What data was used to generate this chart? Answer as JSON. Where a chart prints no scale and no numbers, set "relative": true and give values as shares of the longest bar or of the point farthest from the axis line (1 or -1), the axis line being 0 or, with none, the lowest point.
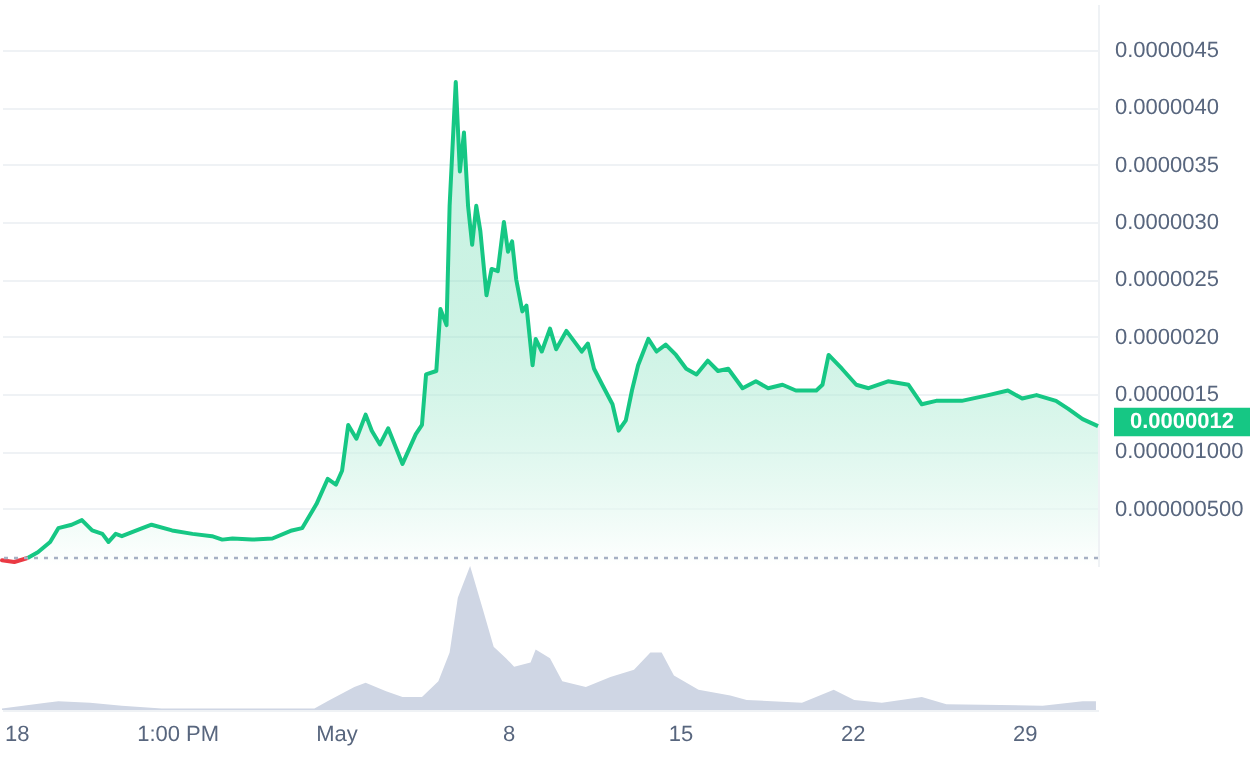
{
  "chart_data": [
    {
      "type": "line",
      "tick_labels": "y",
      "grid": "y",
      "xlim": [
        "--04-17T10:00",
        "--06-01T00:00"
      ],
      "ylim": [
        0,
        4.9e-06
      ],
      "yticks": [
        {
          "value": 5e-07,
          "label": "0.000000500"
        },
        {
          "value": 1e-06,
          "label": "0.000001000"
        },
        {
          "value": 1.5e-06,
          "label": "0.0000015"
        },
        {
          "value": 2e-06,
          "label": "0.0000020"
        },
        {
          "value": 2.5e-06,
          "label": "0.0000025"
        },
        {
          "value": 3e-06,
          "label": "0.0000030"
        },
        {
          "value": 3.5e-06,
          "label": "0.0000035"
        },
        {
          "value": 4e-06,
          "label": "0.0000040"
        },
        {
          "value": 4.5e-06,
          "label": "0.0000045"
        }
      ],
      "ref_lines": [
        {
          "axis": "y",
          "value": 7e-08,
          "line_style": "dotted",
          "color": "#a6b0c3"
        }
      ],
      "annotations": [
        {
          "text": "0.0000012",
          "x": "--06-01T00:00",
          "y": 1.22e-06
        }
      ],
      "series": [
        {
          "type": "line",
          "color": "#ea3943",
          "x": [
            "--04-17T10:00",
            "--04-17T22:00",
            "--04-18T11:00"
          ],
          "values": [
            5e-08,
            3.5e-08,
            7e-08
          ]
        },
        {
          "type": "area",
          "color": "#16c784",
          "x": [
            "--04-18T11:00",
            "--04-18T21:00",
            "--04-19T09:00",
            "--04-19T17:00",
            "--04-20T06:00",
            "--04-20T16:00",
            "--04-21T02:00",
            "--04-21T12:00",
            "--04-21T18:00",
            "--04-22T01:00",
            "--04-22T07:00",
            "--04-23T03:00",
            "--04-23T12:00",
            "--04-24T08:00",
            "--04-25T04:00",
            "--04-25T23:00",
            "--04-26T09:00",
            "--04-26T19:00",
            "--04-27T14:00",
            "--04-28T10:00",
            "--04-29T05:00",
            "--04-29T15:00",
            "--04-30T05:00",
            "--04-30T16:00",
            "--05-01T00:00",
            "--05-01T06:00",
            "--05-01T12:00",
            "--05-01T20:00",
            "--05-02T05:00",
            "--05-02T11:00",
            "--05-02T19:00",
            "--05-03T03:00",
            "--05-03T17:00",
            "--05-04T06:00",
            "--05-04T12:00",
            "--05-04T16:00",
            "--05-05T02:00",
            "--05-05T06:00",
            "--05-05T12:00",
            "--05-05T15:00",
            "--05-05T21:00",
            "--05-06T01:00",
            "--05-06T05:00",
            "--05-06T09:00",
            "--05-06T13:00",
            "--05-06T17:00",
            "--05-06T21:00",
            "--05-07T03:00",
            "--05-07T08:00",
            "--05-07T14:00",
            "--05-07T20:00",
            "--05-08T00:00",
            "--05-08T04:00",
            "--05-08T08:00",
            "--05-08T14:00",
            "--05-08T18:00",
            "--05-09T00:00",
            "--05-09T03:00",
            "--05-09T09:00",
            "--05-09T17:00",
            "--05-09T23:00",
            "--05-10T09:00",
            "--05-10T19:00",
            "--05-11T00:00",
            "--05-11T06:00",
            "--05-11T12:00",
            "--05-11T20:00",
            "--05-12T06:00",
            "--05-12T12:00",
            "--05-12T19:00",
            "--05-13T01:00",
            "--05-13T07:00",
            "--05-13T17:00",
            "--05-14T01:00",
            "--05-14T10:00",
            "--05-14T20:00",
            "--05-15T06:00",
            "--05-15T16:00",
            "--05-16T03:00",
            "--05-16T13:00",
            "--05-16T23:00",
            "--05-17T13:00",
            "--05-18T02:00",
            "--05-18T14:00",
            "--05-19T04:00",
            "--05-19T17:00",
            "--05-20T13:00",
            "--05-20T19:00",
            "--05-21T01:00",
            "--05-21T14:00",
            "--05-22T04:00",
            "--05-22T16:00",
            "--05-23T11:00",
            "--05-24T07:00",
            "--05-24T20:00",
            "--05-25T10:00",
            "--05-26T11:00",
            "--05-27T13:00",
            "--05-28T08:00",
            "--05-28T22:00",
            "--05-29T12:00",
            "--05-30T07:00",
            "--05-30T19:00",
            "--05-31T09:00",
            "--06-01T00:00"
          ],
          "values": [
            7e-08,
            1.2e-07,
            2.1e-07,
            3.3e-07,
            3.6e-07,
            4e-07,
            3.1e-07,
            2.8e-07,
            2.1e-07,
            2.8e-07,
            2.6e-07,
            3.3e-07,
            3.6e-07,
            3.1e-07,
            2.8e-07,
            2.6e-07,
            2.3e-07,
            2.4e-07,
            2.3e-07,
            2.4e-07,
            3.1e-07,
            3.3e-07,
            5.4e-07,
            7.6e-07,
            7.1e-07,
            8.3e-07,
            1.23e-06,
            1.11e-06,
            1.32e-06,
            1.18e-06,
            1.06e-06,
            1.2e-06,
            8.9e-07,
            1.15e-06,
            1.23e-06,
            1.67e-06,
            1.7e-06,
            2.24e-06,
            2.1e-06,
            3.14e-06,
            4.22e-06,
            3.44e-06,
            3.78e-06,
            3.14e-06,
            2.8e-06,
            3.14e-06,
            2.92e-06,
            2.36e-06,
            2.59e-06,
            2.57e-06,
            3e-06,
            2.74e-06,
            2.83e-06,
            2.5e-06,
            2.22e-06,
            2.27e-06,
            1.75e-06,
            1.98e-06,
            1.87e-06,
            2.07e-06,
            1.89e-06,
            2.05e-06,
            1.93e-06,
            1.87e-06,
            1.94e-06,
            1.72e-06,
            1.58e-06,
            1.41e-06,
            1.18e-06,
            1.27e-06,
            1.53e-06,
            1.75e-06,
            1.98e-06,
            1.87e-06,
            1.93e-06,
            1.84e-06,
            1.72e-06,
            1.67e-06,
            1.79e-06,
            1.7e-06,
            1.72e-06,
            1.55e-06,
            1.61e-06,
            1.55e-06,
            1.58e-06,
            1.53e-06,
            1.53e-06,
            1.58e-06,
            1.84e-06,
            1.72e-06,
            1.58e-06,
            1.55e-06,
            1.61e-06,
            1.58e-06,
            1.41e-06,
            1.44e-06,
            1.44e-06,
            1.49e-06,
            1.53e-06,
            1.46e-06,
            1.49e-06,
            1.44e-06,
            1.37e-06,
            1.28e-06,
            1.22e-06
          ]
        }
      ]
    },
    {
      "type": "area",
      "relative": true,
      "tick_labels": "x",
      "xlim": [
        "--04-17T10:00",
        "--06-01T00:00"
      ],
      "xticks": [
        {
          "value": "--04-18",
          "label": "18"
        },
        {
          "value": "--04-24T13:00",
          "label": "1:00 PM"
        },
        {
          "value": "--05-01",
          "label": "May"
        },
        {
          "value": "--05-08",
          "label": "8"
        },
        {
          "value": "--05-15",
          "label": "15"
        },
        {
          "value": "--05-22",
          "label": "22"
        },
        {
          "value": "--05-29",
          "label": "29"
        }
      ],
      "series": [
        {
          "color": "#cfd6e4",
          "x": [
            "--04-17T10:00",
            "--04-19T05:00",
            "--04-19T17:00",
            "--04-21T00:00",
            "--04-22T07:00",
            "--04-23T22:00",
            "--04-30T03:00",
            "--04-30T18:00",
            "--05-01T18:00",
            "--05-02T05:00",
            "--05-03T01:00",
            "--05-03T17:00",
            "--05-04T12:00",
            "--05-05T04:00",
            "--05-05T15:00",
            "--05-05T23:00",
            "--05-06T11:00",
            "--05-06T23:00",
            "--05-07T10:00",
            "--05-07T22:00",
            "--05-08T06:00",
            "--05-08T22:00",
            "--05-09T03:00",
            "--05-09T17:00",
            "--05-10T05:00",
            "--05-11T04:00",
            "--05-12T04:00",
            "--05-13T03:00",
            "--05-13T19:00",
            "--05-14T06:00",
            "--05-14T18:00",
            "--05-15T18:00",
            "--05-17T01:00",
            "--05-17T17:00",
            "--05-19T23:00",
            "--05-21T06:00",
            "--05-22T02:00",
            "--05-23T05:00",
            "--05-24T20:00",
            "--05-25T20:00",
            "--05-29T18:00",
            "--05-31T09:00",
            "--05-31T22:00"
          ],
          "values": [
            0.01,
            0.05,
            0.06,
            0.05,
            0.03,
            0.01,
            0.01,
            0.07,
            0.16,
            0.19,
            0.13,
            0.09,
            0.09,
            0.2,
            0.4,
            0.78,
            1,
            0.71,
            0.44,
            0.36,
            0.3,
            0.33,
            0.42,
            0.36,
            0.2,
            0.16,
            0.23,
            0.28,
            0.4,
            0.4,
            0.24,
            0.14,
            0.1,
            0.07,
            0.05,
            0.14,
            0.07,
            0.05,
            0.09,
            0.04,
            0.03,
            0.06,
            0.06
          ]
        }
      ]
    }
  ]
}
